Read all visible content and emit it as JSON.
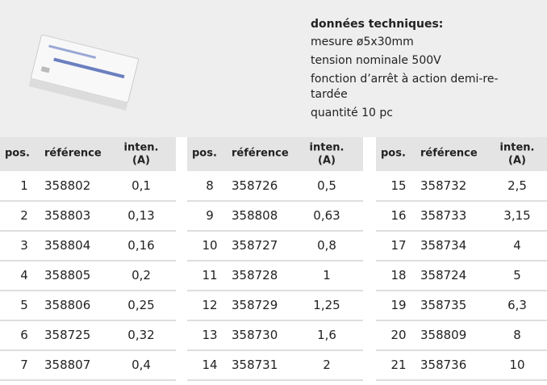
{
  "specs": {
    "title": "données techniques:",
    "lines": [
      "mesure ø5x30mm",
      "tension nominale 500V",
      "fonction d’arrêt à action demi-re-",
      "tardée",
      "quantité 10 pc"
    ]
  },
  "table": {
    "headers": {
      "pos": "pos.",
      "reference": "référence",
      "intensity": [
        "inten.",
        "(A)"
      ]
    },
    "rows": [
      [
        "1",
        "358802",
        "0,1"
      ],
      [
        "2",
        "358803",
        "0,13"
      ],
      [
        "3",
        "358804",
        "0,16"
      ],
      [
        "4",
        "358805",
        "0,2"
      ],
      [
        "5",
        "358806",
        "0,25"
      ],
      [
        "6",
        "358725",
        "0,32"
      ],
      [
        "7",
        "358807",
        "0,4"
      ],
      [
        "8",
        "358726",
        "0,5"
      ],
      [
        "9",
        "358808",
        "0,63"
      ],
      [
        "10",
        "358727",
        "0,8"
      ],
      [
        "11",
        "358728",
        "1"
      ],
      [
        "12",
        "358729",
        "1,25"
      ],
      [
        "13",
        "358730",
        "1,6"
      ],
      [
        "14",
        "358731",
        "2"
      ],
      [
        "15",
        "358732",
        "2,5"
      ],
      [
        "16",
        "358733",
        "3,15"
      ],
      [
        "17",
        "358734",
        "4"
      ],
      [
        "18",
        "358724",
        "5"
      ],
      [
        "19",
        "358735",
        "6,3"
      ],
      [
        "20",
        "358809",
        "8"
      ],
      [
        "21",
        "358736",
        "10"
      ]
    ]
  }
}
